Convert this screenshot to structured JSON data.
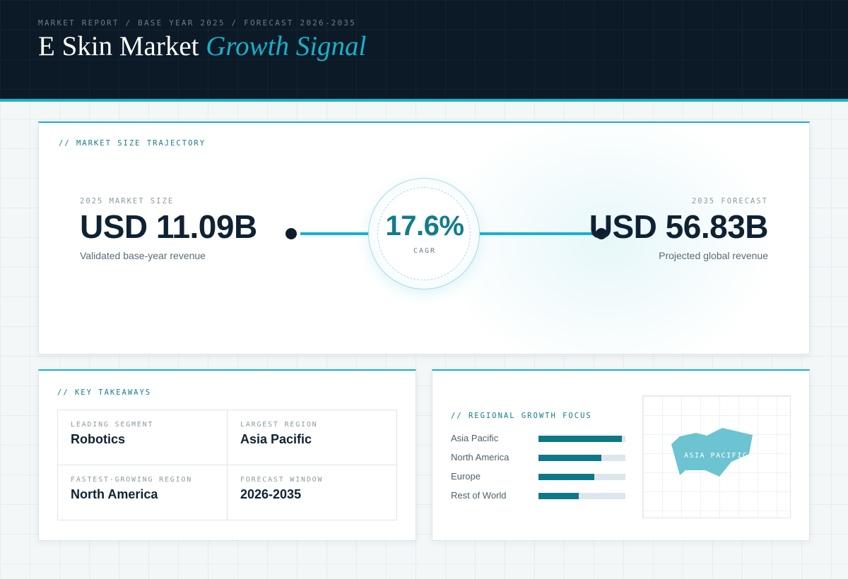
{
  "header": {
    "kicker": "MARKET REPORT / BASE YEAR 2025 / FORECAST 2026-2035",
    "title_main": "E Skin Market",
    "title_accent": "Growth Signal"
  },
  "trajectory": {
    "label": "// MARKET SIZE TRAJECTORY",
    "base": {
      "label": "2025 MARKET SIZE",
      "value": "USD 11.09B",
      "caption": "Validated base-year revenue"
    },
    "forecast": {
      "label": "2035 FORECAST",
      "value": "USD 56.83B",
      "caption": "Projected global revenue"
    },
    "cagr": {
      "value": "17.6%",
      "label": "CAGR"
    }
  },
  "takeaways": {
    "label": "// KEY TAKEAWAYS",
    "items": [
      {
        "key": "LEADING SEGMENT",
        "value": "Robotics"
      },
      {
        "key": "LARGEST REGION",
        "value": "Asia Pacific"
      },
      {
        "key": "FASTEST-GROWING REGION",
        "value": "North America"
      },
      {
        "key": "FORECAST WINDOW",
        "value": "2026-2035"
      }
    ]
  },
  "regional": {
    "label": "// REGIONAL GROWTH FOCUS",
    "rows": [
      {
        "name": "Asia Pacific",
        "share": 0.96
      },
      {
        "name": "North America",
        "share": 0.72
      },
      {
        "name": "Europe",
        "share": 0.64
      },
      {
        "name": "Rest of World",
        "share": 0.46
      }
    ],
    "map_label": "ASIA PACIFIC",
    "colors": {
      "accent": "#17b1cc",
      "bar": "#0f7888",
      "map_fill": "#6cc3d2"
    }
  }
}
